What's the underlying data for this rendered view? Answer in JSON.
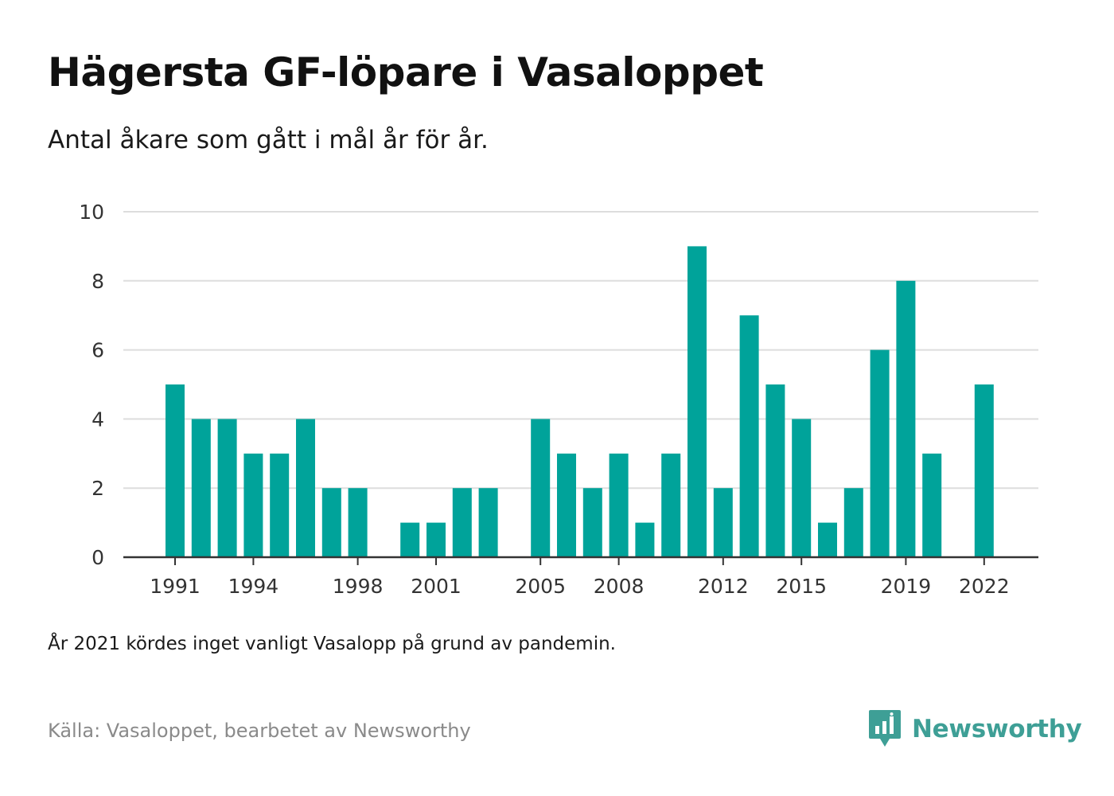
{
  "title": "Hägersta GF-löpare i Vasaloppet",
  "subtitle": "Antal åkare som gått i mål år för år.",
  "note": "År 2021 kördes inget vanligt Vasalopp på grund av pandemin.",
  "source": "Källa: Vasaloppet, bearbetet av Newsworthy",
  "brand": {
    "name": "Newsworthy",
    "logo_icon": "newsworthy-chart-logo-icon",
    "color": "#3e9f96"
  },
  "chart_data": {
    "type": "bar",
    "x": [
      1991,
      1992,
      1993,
      1994,
      1995,
      1996,
      1997,
      1998,
      1999,
      2000,
      2001,
      2002,
      2003,
      2004,
      2005,
      2006,
      2007,
      2008,
      2009,
      2010,
      2011,
      2012,
      2013,
      2014,
      2015,
      2016,
      2017,
      2018,
      2019,
      2020,
      2021,
      2022
    ],
    "values": [
      5,
      4,
      4,
      3,
      3,
      4,
      2,
      2,
      0,
      1,
      1,
      2,
      2,
      0,
      4,
      3,
      2,
      3,
      1,
      3,
      9,
      2,
      7,
      5,
      4,
      1,
      2,
      6,
      8,
      3,
      0,
      5
    ],
    "x_tick_labels": [
      "1991",
      "1994",
      "1998",
      "2001",
      "2005",
      "2008",
      "2012",
      "2015",
      "2019",
      "2022"
    ],
    "y_ticks": [
      "0",
      "2",
      "4",
      "6",
      "8",
      "10"
    ],
    "ylim": [
      0,
      10
    ],
    "grid": true,
    "bar_color": "#00a39a"
  }
}
